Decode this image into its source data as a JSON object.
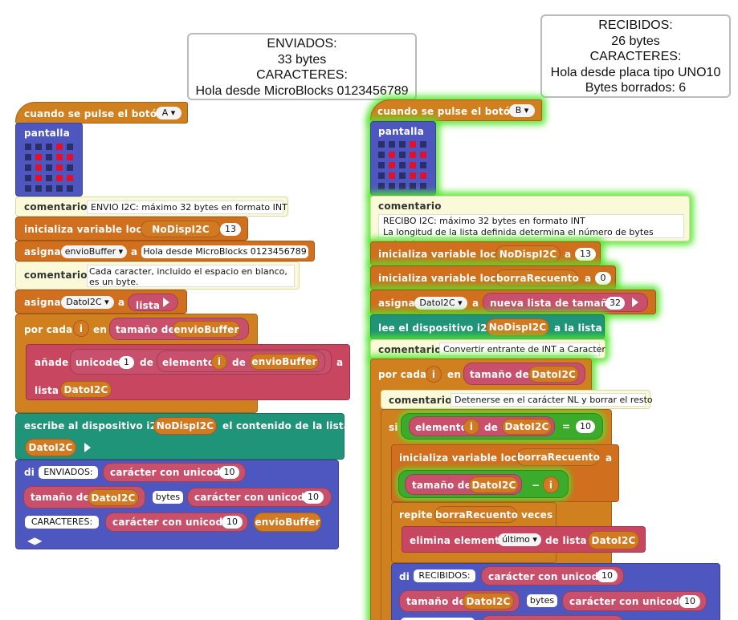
{
  "left": {
    "bubble": [
      "ENVIADOS:",
      "33 bytes",
      "CARACTERES:",
      "Hola desde MicroBlocks 0123456789"
    ],
    "hat": {
      "label": "cuando se pulse el botón",
      "button": "A"
    },
    "display": {
      "label": "pantalla",
      "rows": [
        [
          0,
          0,
          0,
          1,
          0
        ],
        [
          0,
          1,
          0,
          1,
          1
        ],
        [
          0,
          1,
          0,
          1,
          0
        ],
        [
          0,
          1,
          0,
          1,
          1
        ],
        [
          0,
          0,
          0,
          0,
          0
        ]
      ]
    },
    "comment1": {
      "label": "comentario",
      "text": "ENVIO I2C: máximo 32 bytes en formato INT"
    },
    "init": {
      "label": "inicializa variable local",
      "var": "NoDispI2C",
      "a": "a",
      "value": "13"
    },
    "assign1": {
      "label": "asigna",
      "var": "envioBuffer",
      "a": "a",
      "value": "Hola desde MicroBlocks 0123456789"
    },
    "comment2": {
      "label": "comentario",
      "text": "Cada caracter, incluido el espacio en blanco, es un byte."
    },
    "assign2": {
      "label": "asigna",
      "var": "DatoI2C",
      "a": "a",
      "list": "lista"
    },
    "foreach": {
      "label": "por cada",
      "var": "i",
      "en": "en",
      "size": "tamaño de",
      "of": "envioBuffer"
    },
    "add": {
      "label": "añade",
      "unicode": "unicode",
      "n": "1",
      "de": "de",
      "elem": "elemento",
      "i": "i",
      "de2": "de",
      "buf": "envioBuffer",
      "a": "a",
      "lista": "lista",
      "target": "DatoI2C"
    },
    "write": {
      "label": "escribe al dispositivo i2c",
      "dev": "NoDispI2C",
      "contenido": "el contenido de la lista",
      "list": "DatoI2C"
    },
    "say": {
      "label": "di",
      "s1": "ENVIADOS:",
      "chr": "carácter con unicode",
      "n10": "10",
      "size": "tamaño de",
      "var": "DatoI2C",
      "bytes": "bytes",
      "s2": "CARACTERES:",
      "buf": "envioBuffer"
    }
  },
  "right": {
    "bubble": [
      "RECIBIDOS:",
      "26 bytes",
      "CARACTERES:",
      "Hola desde placa tipo UNO10",
      "Bytes borrados: 6"
    ],
    "hat": {
      "label": "cuando se pulse el botón",
      "button": "B"
    },
    "display": {
      "label": "pantalla",
      "rows": [
        [
          0,
          0,
          0,
          1,
          0
        ],
        [
          0,
          1,
          0,
          1,
          1
        ],
        [
          0,
          1,
          0,
          1,
          0
        ],
        [
          0,
          1,
          0,
          1,
          1
        ],
        [
          0,
          0,
          0,
          0,
          0
        ]
      ]
    },
    "comment1": {
      "label": "comentario",
      "line1": "RECIBO I2C: máximo 32 bytes en formato INT",
      "line2": "La longitud de la lista definida determina el número de bytes entrantes."
    },
    "init1": {
      "label": "inicializa variable local",
      "var": "NoDispI2C",
      "a": "a",
      "value": "13"
    },
    "init2": {
      "label": "inicializa variable local",
      "var": "borraRecuento",
      "a": "a",
      "value": "0"
    },
    "assign": {
      "label": "asigna",
      "var": "DatoI2C",
      "a": "a",
      "newlist": "nueva lista de tamaño",
      "size": "32"
    },
    "read": {
      "label": "lee el dispositivo i2c",
      "dev": "NoDispI2C",
      "to": "a la lista"
    },
    "comment2": {
      "label": "comentario",
      "text": "Convertir entrante de INT a Caracter"
    },
    "foreach": {
      "label": "por cada",
      "var": "i",
      "en": "en",
      "size": "tamaño de",
      "of": "DatoI2C"
    },
    "comment3": {
      "label": "comentario",
      "text": "Detenerse en el carácter NL y borrar el resto"
    },
    "if": {
      "label": "si",
      "elem": "elemento",
      "i": "i",
      "de": "de",
      "var": "DatoI2C",
      "eq": "=",
      "val": "10"
    },
    "init3": {
      "label": "inicializa variable local",
      "var": "borraRecuento",
      "a": "a",
      "size": "tamaño de",
      "list": "DatoI2C",
      "minus": "−",
      "i": "i"
    },
    "repeat": {
      "label": "repite",
      "var": "borraRecuento",
      "veces": "veces"
    },
    "delete": {
      "label": "elimina elemento",
      "which": "último",
      "de": "de lista",
      "list": "DatoI2C"
    },
    "say": {
      "label": "di",
      "s1": "RECIBIDOS:",
      "chr": "carácter con unicode",
      "n10": "10",
      "size": "tamaño de",
      "var": "DatoI2C",
      "bytes": "bytes"
    }
  },
  "colors": {
    "control": "#d0801f",
    "variables": "#d0701f",
    "lists": "#c8465f",
    "display": "#4e57bf",
    "i2c": "#1f9478",
    "comment": "#fafad8",
    "highlight": "#5ee02a"
  }
}
